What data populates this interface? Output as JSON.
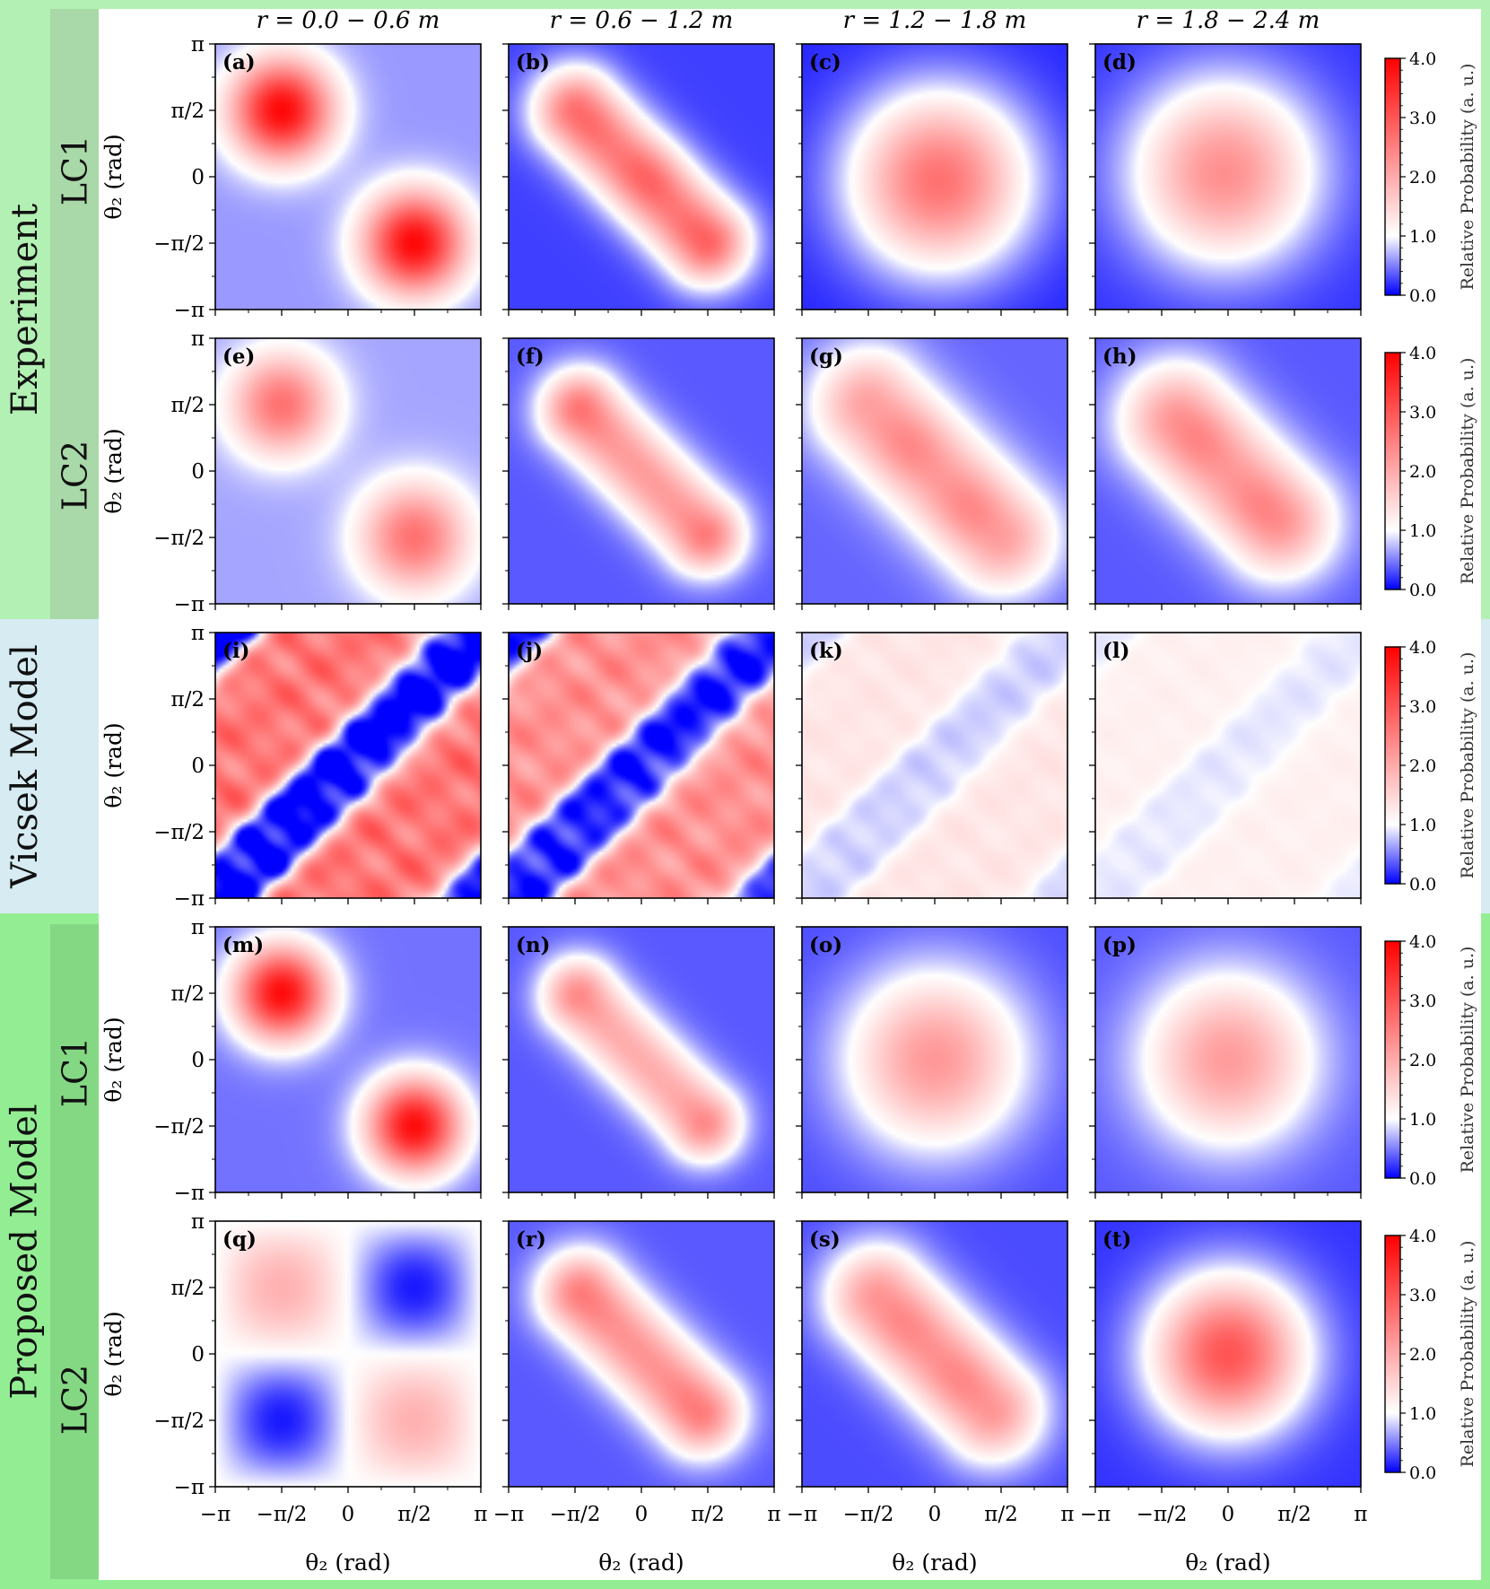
{
  "groups": [
    {
      "label": "Experiment",
      "color": "#b3f0b3",
      "side_color": "#c6f5c6"
    },
    {
      "label": "Vicsek Model",
      "color": "#d6ebf2",
      "side_color": "#d6ebf2"
    },
    {
      "label": "Proposed Model",
      "color": "#93ee93",
      "side_color": "#9ff09f"
    }
  ],
  "subgroups": [
    "LC1",
    "LC2",
    "LC1",
    "LC2"
  ],
  "col_titles": [
    "r = 0.0 − 0.6 m",
    "r = 0.6 − 1.2 m",
    "r = 1.2 − 1.8 m",
    "r = 1.8 − 2.4 m"
  ],
  "axis": {
    "xlabel": "θ₂ (rad)",
    "ylabel": "θ₂ (rad)",
    "ticks": [
      "−π",
      "−π/2",
      "0",
      "π/2",
      "π"
    ]
  },
  "colorbar": {
    "label": "Relative Probability (a. u.)",
    "ticks": [
      "0.0",
      "1.0",
      "2.0",
      "3.0",
      "4.0"
    ],
    "range": [
      0,
      4
    ],
    "colors": {
      "low": "#0000ff",
      "mid": "#ffffff",
      "high": "#ff0000"
    }
  },
  "chart_data": {
    "type": "heatmap",
    "xlim": [
      -3.1416,
      3.1416
    ],
    "ylim": [
      -3.1416,
      3.1416
    ],
    "panels": [
      {
        "label": "(a)",
        "kind": "blobs",
        "bg": 0.6,
        "blobs": [
          {
            "x": -1.57,
            "y": 1.57,
            "amp": 3.3,
            "s": 0.9
          },
          {
            "x": 1.57,
            "y": -1.57,
            "amp": 3.3,
            "s": 0.9
          }
        ]
      },
      {
        "label": "(b)",
        "kind": "band",
        "bg": 0.25,
        "amp": 2.2,
        "half": 2.2,
        "width": 1.05,
        "bumps": [
          {
            "x": -1.3,
            "y": 1.4,
            "a": 0.3
          },
          {
            "x": 0.2,
            "y": 0.0,
            "a": 0.4
          },
          {
            "x": 1.5,
            "y": -1.5,
            "a": 0.4
          }
        ]
      },
      {
        "label": "(c)",
        "kind": "blobs",
        "bg": 0.15,
        "blobs": [
          {
            "x": 0.1,
            "y": -0.1,
            "amp": 2.5,
            "s": 1.55
          }
        ]
      },
      {
        "label": "(d)",
        "kind": "blobs",
        "bg": 0.2,
        "blobs": [
          {
            "x": -0.1,
            "y": 0.1,
            "amp": 2.1,
            "s": 1.6
          }
        ]
      },
      {
        "label": "(e)",
        "kind": "blobs",
        "bg": 0.65,
        "blobs": [
          {
            "x": -1.57,
            "y": 1.57,
            "amp": 2.0,
            "s": 0.9
          },
          {
            "x": 1.57,
            "y": -1.57,
            "amp": 2.0,
            "s": 0.95
          }
        ]
      },
      {
        "label": "(f)",
        "kind": "band",
        "bg": 0.35,
        "amp": 1.8,
        "half": 2.0,
        "width": 1.0,
        "bumps": [
          {
            "x": -1.5,
            "y": 1.5,
            "a": 0.5
          },
          {
            "x": 1.7,
            "y": -1.7,
            "a": 0.5
          }
        ]
      },
      {
        "label": "(g)",
        "kind": "band",
        "bg": 0.4,
        "amp": 1.7,
        "half": 2.2,
        "width": 1.35,
        "bumps": [
          {
            "x": -0.6,
            "y": 0.6,
            "a": 0.3
          },
          {
            "x": 0.8,
            "y": -0.9,
            "a": 0.3
          }
        ]
      },
      {
        "label": "(h)",
        "kind": "band",
        "bg": 0.35,
        "amp": 1.8,
        "half": 1.7,
        "width": 1.4,
        "bumps": [
          {
            "x": -0.7,
            "y": 0.8,
            "a": 0.3
          },
          {
            "x": 0.8,
            "y": -0.9,
            "a": 0.3
          }
        ]
      },
      {
        "label": "(i)",
        "kind": "stripes",
        "amp": 2.0,
        "contrast": 1.8
      },
      {
        "label": "(j)",
        "kind": "stripes",
        "amp": 1.6,
        "contrast": 1.5
      },
      {
        "label": "(k)",
        "kind": "stripes",
        "amp": 0.35,
        "contrast": 0.3
      },
      {
        "label": "(l)",
        "kind": "stripes",
        "amp": 0.2,
        "contrast": 0.15
      },
      {
        "label": "(m)",
        "kind": "blobs",
        "bg": 0.45,
        "blobs": [
          {
            "x": -1.57,
            "y": 1.57,
            "amp": 3.4,
            "s": 0.85
          },
          {
            "x": 1.57,
            "y": -1.57,
            "amp": 3.4,
            "s": 0.85
          }
        ]
      },
      {
        "label": "(n)",
        "kind": "band",
        "bg": 0.35,
        "amp": 1.6,
        "half": 2.0,
        "width": 0.95,
        "bumps": [
          {
            "x": -1.6,
            "y": 1.7,
            "a": 0.5
          },
          {
            "x": 1.6,
            "y": -1.7,
            "a": 0.5
          }
        ]
      },
      {
        "label": "(o)",
        "kind": "blobs",
        "bg": 0.3,
        "blobs": [
          {
            "x": 0.0,
            "y": 0.0,
            "amp": 1.9,
            "s": 1.55
          }
        ]
      },
      {
        "label": "(p)",
        "kind": "blobs",
        "bg": 0.35,
        "blobs": [
          {
            "x": 0.0,
            "y": 0.0,
            "amp": 1.8,
            "s": 1.5
          }
        ]
      },
      {
        "label": "(q)",
        "kind": "quad",
        "bg": 1.0,
        "amp": 0.9
      },
      {
        "label": "(r)",
        "kind": "band",
        "bg": 0.35,
        "amp": 1.9,
        "half": 2.0,
        "width": 1.05,
        "bumps": [
          {
            "x": -1.4,
            "y": 1.4,
            "a": 0.3
          },
          {
            "x": 1.3,
            "y": -1.3,
            "a": 0.3
          }
        ]
      },
      {
        "label": "(s)",
        "kind": "band",
        "bg": 0.3,
        "amp": 1.9,
        "half": 1.9,
        "width": 1.25,
        "bumps": [
          {
            "x": -0.7,
            "y": 0.7,
            "a": 0.2
          },
          {
            "x": 0.6,
            "y": -0.6,
            "a": 0.2
          }
        ]
      },
      {
        "label": "(t)",
        "kind": "blobs",
        "bg": 0.2,
        "blobs": [
          {
            "x": 0.0,
            "y": 0.0,
            "amp": 2.8,
            "s": 1.35
          }
        ]
      }
    ]
  }
}
